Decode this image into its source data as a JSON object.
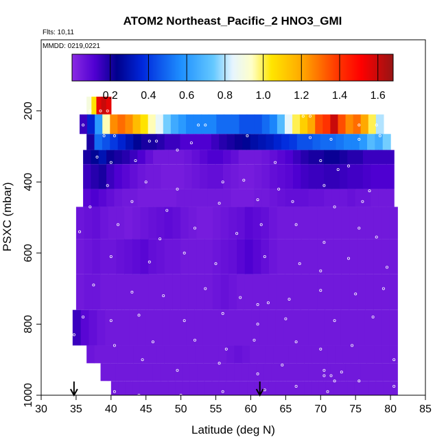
{
  "chart_data": {
    "type": "heatmap",
    "title": "ATOM2 Northeast_Pacific_2 HNO3_GMI",
    "subtitle_flights": "Flts: 10,11",
    "subtitle_dates": "MMDD: 0219,0221",
    "xlabel": "Latitude (deg N)",
    "ylabel": "PSXC (mbar)",
    "xlim": [
      30,
      85
    ],
    "ylim": [
      1000,
      0
    ],
    "x_ticks": [
      "30",
      "35",
      "40",
      "45",
      "50",
      "55",
      "60",
      "65",
      "70",
      "75",
      "80",
      "85"
    ],
    "y_ticks": [
      "200",
      "400",
      "600",
      "800",
      "1000"
    ],
    "colorbar": {
      "range": [
        0,
        1.68
      ],
      "ticks": [
        "0.2",
        "0.4",
        "0.6",
        "0.8",
        "1.0",
        "1.2",
        "1.4",
        "1.6"
      ]
    },
    "arrows_at_latitude": [
      34.7,
      61.3
    ],
    "bins": [
      {
        "p": [
          160,
          210
        ],
        "lat": [
          36.5,
          40
        ],
        "values": [
          0.9,
          1.05,
          1.55,
          1.6,
          1.55
        ]
      },
      {
        "p": [
          210,
          265
        ],
        "lat": [
          35.5,
          79
        ],
        "values": [
          0.15,
          0.35,
          0.6,
          0.95,
          1.25,
          1.3,
          1.25,
          1.15,
          1.05,
          0.95,
          0.85,
          0.75,
          0.65,
          0.6,
          0.55,
          0.55,
          0.55,
          0.55,
          0.5,
          0.5,
          0.5,
          0.45,
          0.45,
          0.45,
          0.5,
          0.55,
          0.7,
          0.85,
          1.0,
          1.1,
          1.2,
          1.35,
          1.4,
          1.6,
          1.35,
          1.25,
          1.3,
          1.2,
          1.0,
          0.8
        ]
      },
      {
        "p": [
          265,
          310
        ],
        "lat": [
          36.5,
          80
        ],
        "values": [
          0.2,
          0.5,
          0.45,
          0.4,
          0.35,
          0.3,
          0.25,
          0.2,
          0.2,
          0.18,
          0.15,
          0.15,
          0.12,
          0.12,
          0.12,
          0.12,
          0.15,
          0.18,
          0.2,
          0.22,
          0.25,
          0.28,
          0.3,
          0.32,
          0.35,
          0.38,
          0.4,
          0.45,
          0.45,
          0.48,
          0.5,
          0.5,
          0.52,
          0.55,
          0.55,
          0.6,
          0.7,
          0.65,
          0.75
        ]
      },
      {
        "p": [
          310,
          350
        ],
        "lat": [
          36,
          80.5
        ],
        "values": [
          0.2,
          0.25,
          0.3,
          0.22,
          0.2,
          0.18,
          0.15,
          0.12,
          0.08,
          0.05,
          0.05,
          0.05,
          0.05,
          0.06,
          0.08,
          0.1,
          0.12,
          0.12,
          0.1,
          0.08,
          0.05,
          0.05,
          0.05,
          0.06,
          0.08,
          0.1,
          0.12,
          0.15,
          0.18,
          0.2,
          0.2,
          0.22,
          0.22,
          0.2,
          0.18,
          0.18,
          0.15,
          0.15,
          0.15,
          0.15
        ]
      },
      {
        "p": [
          350,
          420
        ],
        "lat": [
          36,
          80.5
        ],
        "values": [
          0.15,
          0.18,
          0.2,
          0.15,
          0.12,
          0.1,
          0.08,
          0.06,
          0.05,
          0.05,
          0.04,
          0.04,
          0.04,
          0.05,
          0.06,
          0.07,
          0.08,
          0.08,
          0.06,
          0.05,
          0.04,
          0.04,
          0.05,
          0.06,
          0.08,
          0.09,
          0.1,
          0.12,
          0.14,
          0.15,
          0.15,
          0.16,
          0.16,
          0.15,
          0.14,
          0.14,
          0.13,
          0.12,
          0.12,
          0.12
        ]
      },
      {
        "p": [
          420,
          470
        ],
        "lat": [
          36,
          80.5
        ],
        "values": [
          0.1,
          0.12,
          0.1,
          0.08,
          0.06,
          0.05,
          0.05,
          0.04,
          0.04,
          0.04,
          0.04,
          0.04,
          0.05,
          0.05,
          0.05,
          0.05,
          0.05,
          0.05,
          0.05,
          0.04,
          0.04,
          0.04,
          0.05,
          0.05,
          0.06,
          0.07,
          0.08,
          0.08,
          0.08,
          0.07,
          0.07,
          0.06,
          0.06,
          0.06,
          0.07,
          0.06,
          0.06,
          0.05,
          0.05,
          0.05
        ]
      },
      {
        "p": [
          470,
          560
        ],
        "lat": [
          35,
          81
        ],
        "values": [
          0.06,
          0.07,
          0.08,
          0.06,
          0.05,
          0.05,
          0.04,
          0.05,
          0.06,
          0.07,
          0.08,
          0.09,
          0.08,
          0.06,
          0.05,
          0.04,
          0.04,
          0.05,
          0.06,
          0.07,
          0.08,
          0.1,
          0.09,
          0.08,
          0.06,
          0.05,
          0.05,
          0.05,
          0.05,
          0.05,
          0.05,
          0.05,
          0.05,
          0.05,
          0.05,
          0.05,
          0.05,
          0.05,
          0.05,
          0.05
        ]
      },
      {
        "p": [
          560,
          660
        ],
        "lat": [
          35,
          81
        ],
        "values": [
          0.05,
          0.06,
          0.07,
          0.06,
          0.06,
          0.07,
          0.08,
          0.09,
          0.1,
          0.08,
          0.07,
          0.06,
          0.06,
          0.05,
          0.05,
          0.05,
          0.05,
          0.06,
          0.07,
          0.08,
          0.1,
          0.12,
          0.1,
          0.08,
          0.06,
          0.05,
          0.05,
          0.05,
          0.05,
          0.05,
          0.05,
          0.05,
          0.05,
          0.05,
          0.05,
          0.05,
          0.05,
          0.05,
          0.05,
          0.05
        ]
      },
      {
        "p": [
          660,
          760
        ],
        "lat": [
          35,
          81
        ],
        "values": [
          0.05,
          0.06,
          0.06,
          0.05,
          0.05,
          0.05,
          0.05,
          0.05,
          0.05,
          0.05,
          0.05,
          0.05,
          0.05,
          0.05,
          0.05,
          0.05,
          0.05,
          0.06,
          0.07,
          0.06,
          0.05,
          0.05,
          0.05,
          0.05,
          0.05,
          0.05,
          0.05,
          0.05,
          0.05,
          0.05,
          0.05,
          0.05,
          0.05,
          0.05,
          0.05,
          0.05,
          0.05,
          0.05,
          0.05,
          0.05
        ]
      },
      {
        "p": [
          760,
          860
        ],
        "lat": [
          34.5,
          81
        ],
        "values": [
          0.15,
          0.1,
          0.08,
          0.06,
          0.05,
          0.05,
          0.05,
          0.05,
          0.05,
          0.05,
          0.05,
          0.05,
          0.05,
          0.05,
          0.05,
          0.05,
          0.05,
          0.05,
          0.05,
          0.05,
          0.05,
          0.05,
          0.05,
          0.05,
          0.05,
          0.05,
          0.05,
          0.05,
          0.05,
          0.05,
          0.05,
          0.05,
          0.05,
          0.05,
          0.05,
          0.05,
          0.05,
          0.05,
          0.05,
          0.05
        ]
      },
      {
        "p": [
          860,
          910
        ],
        "lat": [
          36.5,
          81
        ],
        "values": [
          0.06,
          0.05,
          0.05,
          0.05,
          0.05,
          0.05,
          0.05,
          0.05,
          0.05,
          0.05,
          0.05,
          0.05,
          0.05,
          0.05,
          0.05,
          0.05,
          0.05,
          0.05,
          0.06,
          0.07,
          0.06,
          0.05,
          0.05,
          0.05,
          0.05,
          0.05,
          0.05,
          0.05,
          0.05,
          0.05,
          0.05,
          0.05,
          0.05,
          0.05,
          0.05,
          0.05,
          0.05,
          0.05,
          0.05,
          0.05
        ]
      },
      {
        "p": [
          910,
          960
        ],
        "lat": [
          38.5,
          81
        ],
        "values": [
          0.05,
          0.05,
          0.05,
          0.05,
          0.05,
          0.05,
          0.05,
          0.05,
          0.05,
          0.05,
          0.05,
          0.05,
          0.05,
          0.05,
          0.05,
          0.05,
          0.05,
          0.05,
          0.05,
          0.05,
          0.05,
          0.05,
          0.05,
          0.05,
          0.05,
          0.05,
          0.05,
          0.05,
          0.05,
          0.05,
          0.05,
          0.05,
          0.05,
          0.05,
          0.05,
          0.05,
          0.05,
          0.05,
          0.05,
          0.05
        ]
      },
      {
        "p": [
          960,
          1000
        ],
        "lat": [
          40,
          81
        ],
        "values": [
          0.05,
          0.05,
          0.05,
          0.05,
          0.05,
          0.05,
          0.05,
          0.05,
          0.05,
          0.05,
          0.05,
          0.05,
          0.05,
          0.05,
          0.05,
          0.05,
          0.05,
          0.05,
          0.05,
          0.05,
          0.05,
          0.05,
          0.05,
          0.05,
          0.05,
          0.05,
          0.05,
          0.05,
          0.05,
          0.05,
          0.05,
          0.05,
          0.05,
          0.05,
          0.05,
          0.05,
          0.05,
          0.05,
          0.05,
          0.05
        ]
      }
    ],
    "samples": [
      {
        "lat": 36.0,
        "p": 240
      },
      {
        "lat": 37.0,
        "p": 200
      },
      {
        "lat": 38.5,
        "p": 200
      },
      {
        "lat": 39.5,
        "p": 200
      },
      {
        "lat": 52.5,
        "p": 240
      },
      {
        "lat": 53.5,
        "p": 240
      },
      {
        "lat": 67.5,
        "p": 215
      },
      {
        "lat": 68.5,
        "p": 215
      },
      {
        "lat": 75.5,
        "p": 240
      },
      {
        "lat": 78.0,
        "p": 240
      },
      {
        "lat": 39.0,
        "p": 270
      },
      {
        "lat": 40.5,
        "p": 270
      },
      {
        "lat": 45.5,
        "p": 285
      },
      {
        "lat": 46.5,
        "p": 285
      },
      {
        "lat": 51.5,
        "p": 290
      },
      {
        "lat": 59.5,
        "p": 270
      },
      {
        "lat": 68.5,
        "p": 275
      },
      {
        "lat": 71.5,
        "p": 280
      },
      {
        "lat": 75.5,
        "p": 280
      },
      {
        "lat": 78.5,
        "p": 270
      },
      {
        "lat": 38.0,
        "p": 330
      },
      {
        "lat": 40.0,
        "p": 345
      },
      {
        "lat": 43.5,
        "p": 340
      },
      {
        "lat": 49.5,
        "p": 310
      },
      {
        "lat": 63.5,
        "p": 345
      },
      {
        "lat": 70.0,
        "p": 340
      },
      {
        "lat": 72.5,
        "p": 365
      },
      {
        "lat": 74.0,
        "p": 355
      },
      {
        "lat": 39.5,
        "p": 410
      },
      {
        "lat": 45.0,
        "p": 400
      },
      {
        "lat": 49.5,
        "p": 420
      },
      {
        "lat": 56.0,
        "p": 400
      },
      {
        "lat": 59.0,
        "p": 395
      },
      {
        "lat": 64.0,
        "p": 420
      },
      {
        "lat": 70.5,
        "p": 410
      },
      {
        "lat": 77.0,
        "p": 425
      },
      {
        "lat": 37.0,
        "p": 470
      },
      {
        "lat": 43.0,
        "p": 455
      },
      {
        "lat": 48.0,
        "p": 480
      },
      {
        "lat": 55.5,
        "p": 460
      },
      {
        "lat": 61.0,
        "p": 450
      },
      {
        "lat": 66.0,
        "p": 455
      },
      {
        "lat": 72.0,
        "p": 470
      },
      {
        "lat": 76.0,
        "p": 455
      },
      {
        "lat": 35.5,
        "p": 540
      },
      {
        "lat": 41.0,
        "p": 520
      },
      {
        "lat": 47.0,
        "p": 560
      },
      {
        "lat": 52.0,
        "p": 530
      },
      {
        "lat": 58.0,
        "p": 545
      },
      {
        "lat": 61.5,
        "p": 520
      },
      {
        "lat": 66.5,
        "p": 520
      },
      {
        "lat": 70.5,
        "p": 570
      },
      {
        "lat": 75.5,
        "p": 530
      },
      {
        "lat": 78.0,
        "p": 555
      },
      {
        "lat": 40.0,
        "p": 610
      },
      {
        "lat": 45.5,
        "p": 625
      },
      {
        "lat": 50.5,
        "p": 600
      },
      {
        "lat": 55.0,
        "p": 630
      },
      {
        "lat": 62.0,
        "p": 610
      },
      {
        "lat": 67.0,
        "p": 630
      },
      {
        "lat": 70.0,
        "p": 650
      },
      {
        "lat": 74.0,
        "p": 615
      },
      {
        "lat": 79.5,
        "p": 640
      },
      {
        "lat": 37.5,
        "p": 690
      },
      {
        "lat": 43.0,
        "p": 710
      },
      {
        "lat": 47.5,
        "p": 720
      },
      {
        "lat": 53.5,
        "p": 700
      },
      {
        "lat": 58.5,
        "p": 725
      },
      {
        "lat": 61.0,
        "p": 745
      },
      {
        "lat": 62.5,
        "p": 740
      },
      {
        "lat": 65.5,
        "p": 730
      },
      {
        "lat": 70.0,
        "p": 705
      },
      {
        "lat": 75.0,
        "p": 715
      },
      {
        "lat": 79.0,
        "p": 700
      },
      {
        "lat": 36.0,
        "p": 780
      },
      {
        "lat": 40.0,
        "p": 790
      },
      {
        "lat": 44.0,
        "p": 775
      },
      {
        "lat": 50.5,
        "p": 790
      },
      {
        "lat": 56.0,
        "p": 770
      },
      {
        "lat": 61.0,
        "p": 800
      },
      {
        "lat": 65.0,
        "p": 785
      },
      {
        "lat": 72.0,
        "p": 790
      },
      {
        "lat": 77.5,
        "p": 780
      },
      {
        "lat": 34.7,
        "p": 830
      },
      {
        "lat": 40.5,
        "p": 860
      },
      {
        "lat": 46.0,
        "p": 850
      },
      {
        "lat": 52.0,
        "p": 845
      },
      {
        "lat": 56.5,
        "p": 870
      },
      {
        "lat": 60.5,
        "p": 845
      },
      {
        "lat": 66.5,
        "p": 850
      },
      {
        "lat": 70.0,
        "p": 870
      },
      {
        "lat": 74.5,
        "p": 860
      },
      {
        "lat": 80.5,
        "p": 900
      },
      {
        "lat": 38.0,
        "p": 920
      },
      {
        "lat": 44.5,
        "p": 900
      },
      {
        "lat": 49.5,
        "p": 930
      },
      {
        "lat": 55.5,
        "p": 910
      },
      {
        "lat": 61.0,
        "p": 940
      },
      {
        "lat": 64.5,
        "p": 915
      },
      {
        "lat": 70.5,
        "p": 930
      },
      {
        "lat": 70.5,
        "p": 945
      },
      {
        "lat": 71.5,
        "p": 945
      },
      {
        "lat": 72.0,
        "p": 960
      },
      {
        "lat": 73.0,
        "p": 935
      },
      {
        "lat": 75.5,
        "p": 960
      },
      {
        "lat": 40.5,
        "p": 990
      },
      {
        "lat": 44.0,
        "p": 1000
      },
      {
        "lat": 50.0,
        "p": 1000
      },
      {
        "lat": 56.0,
        "p": 990
      },
      {
        "lat": 62.0,
        "p": 985
      },
      {
        "lat": 66.5,
        "p": 975
      },
      {
        "lat": 71.0,
        "p": 990
      },
      {
        "lat": 80.5,
        "p": 975
      }
    ]
  }
}
